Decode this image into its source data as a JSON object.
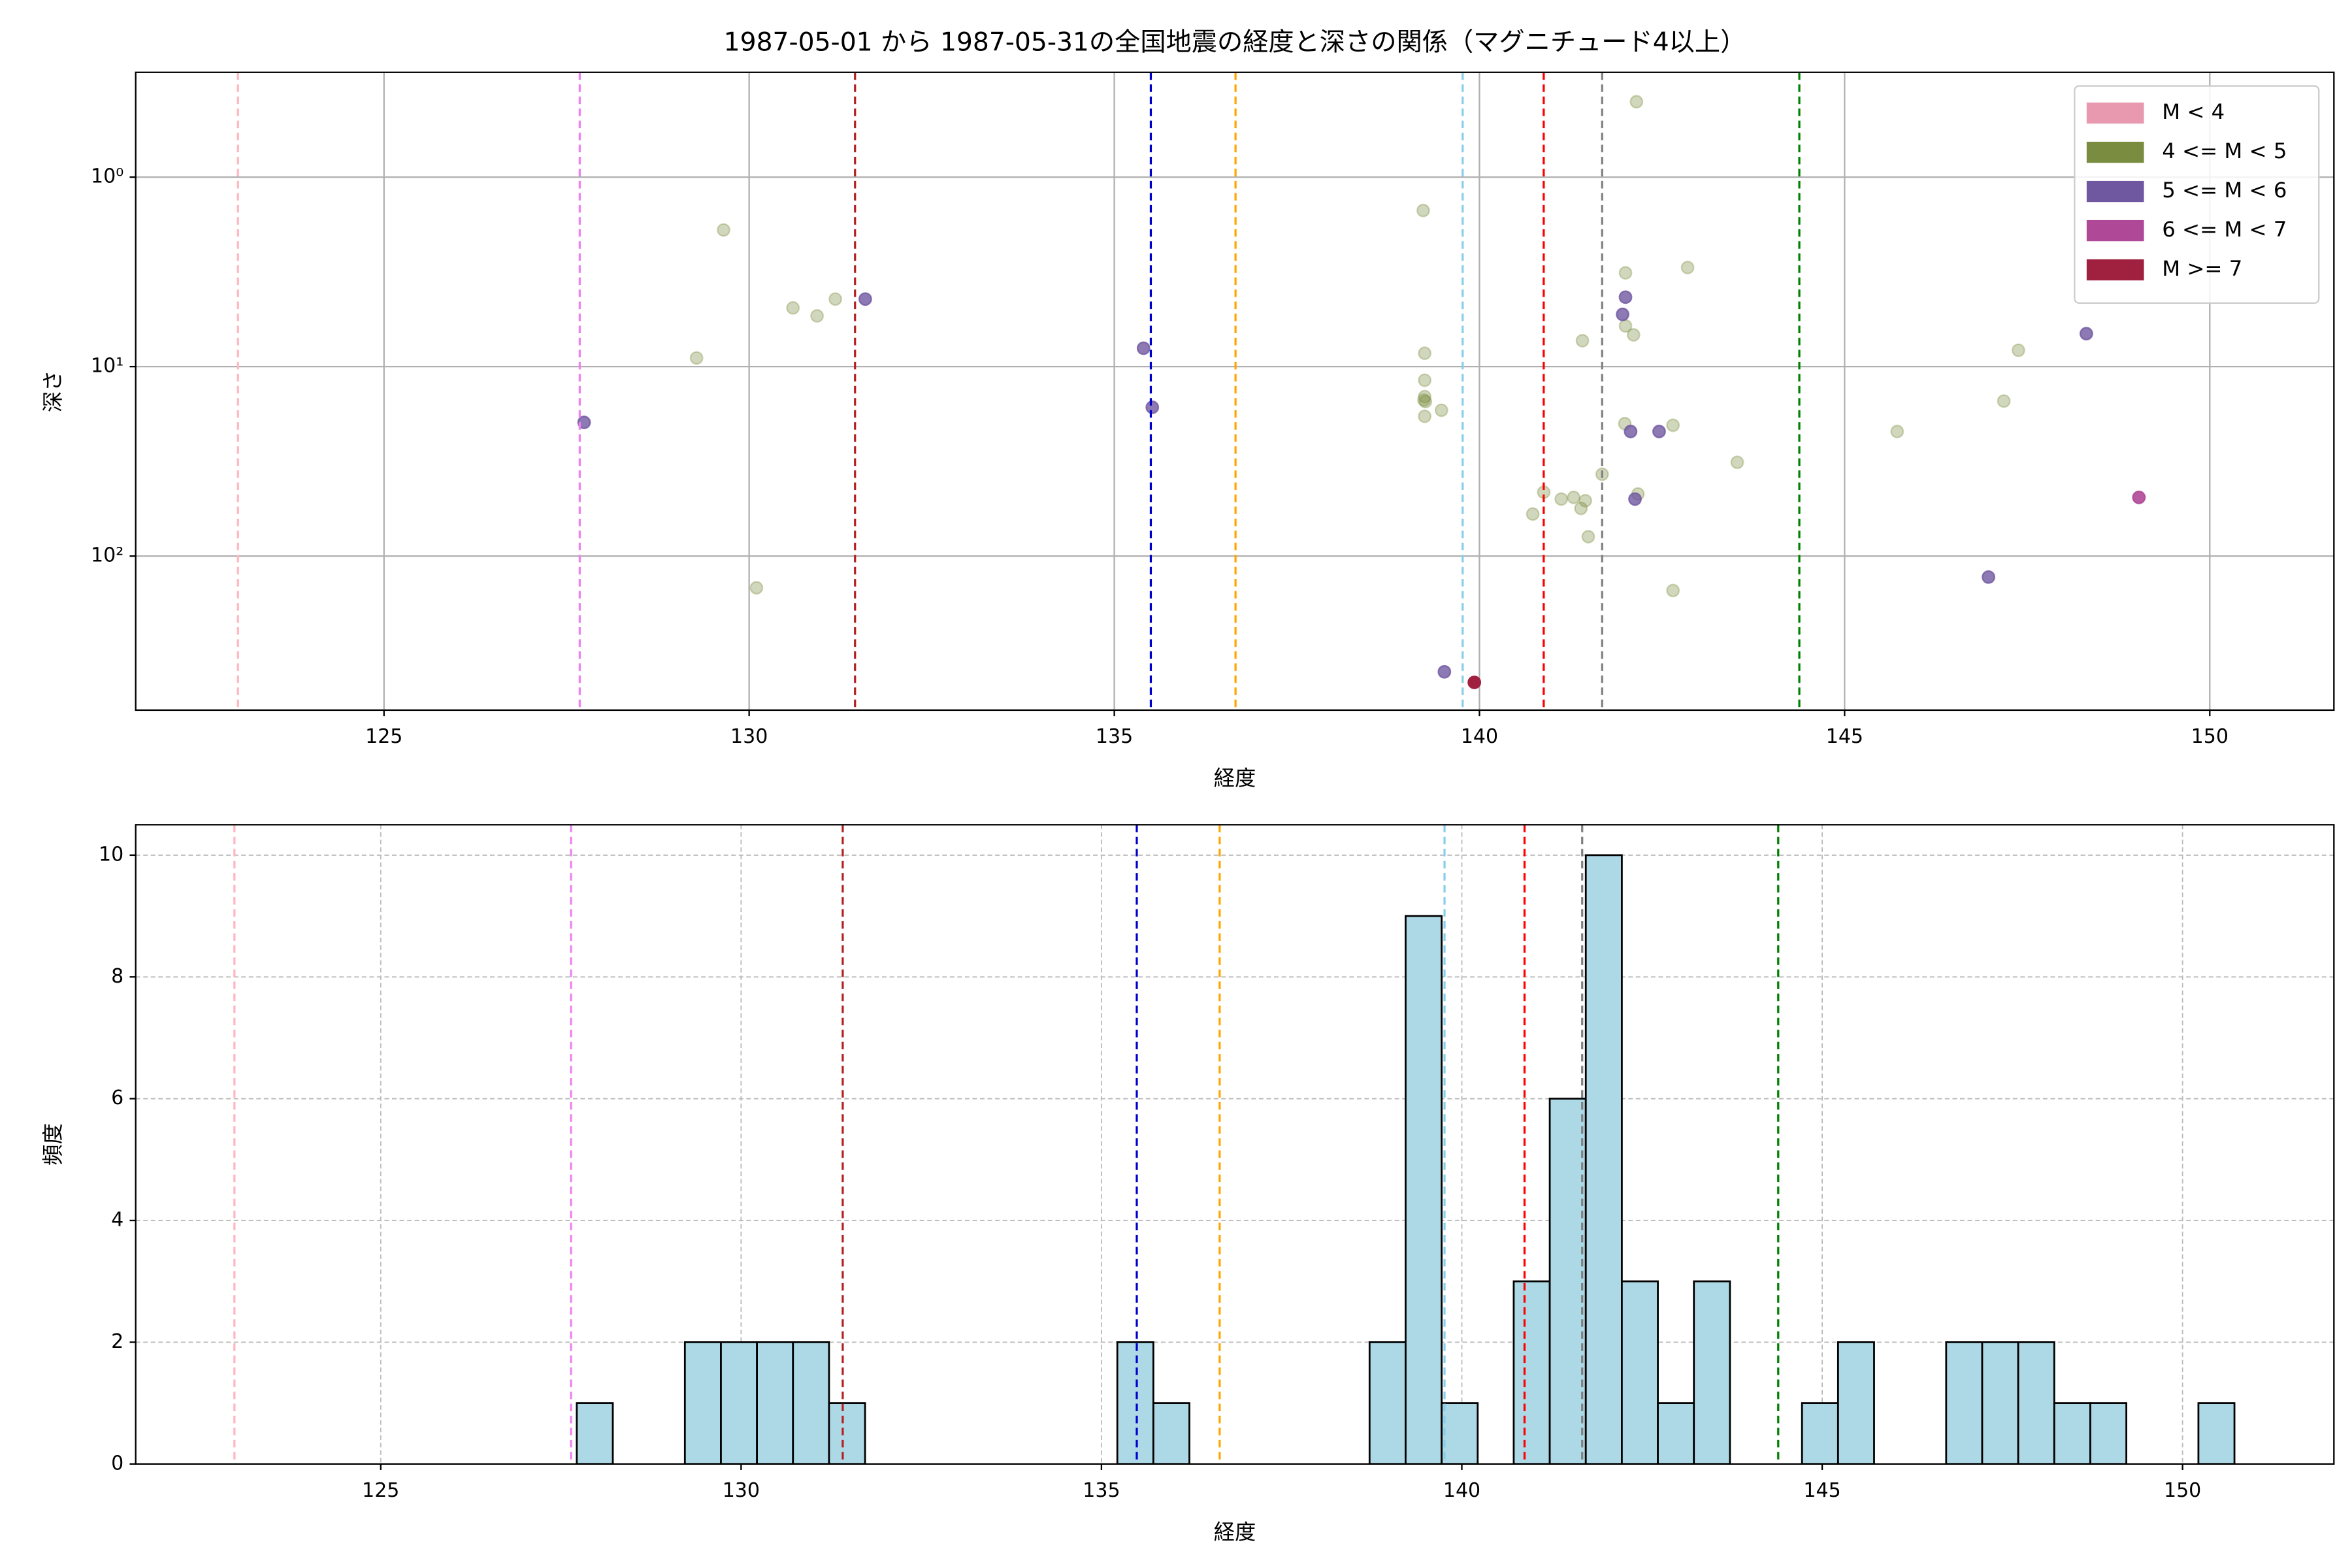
{
  "chart_data": [
    {
      "type": "scatter",
      "title": "1987-05-01 から 1987-05-31の全国地震の経度と深さの関係（マグニチュード4以上）",
      "xlabel": "経度",
      "ylabel": "深さ",
      "xlim": [
        121.6,
        151.7
      ],
      "xticks": [
        125,
        130,
        135,
        140,
        145,
        150
      ],
      "ylim": [
        0.28,
        650
      ],
      "log_y": true,
      "invert_y": true,
      "yticks": [
        {
          "value": 1,
          "label": "10⁰"
        },
        {
          "value": 10,
          "label": "10¹"
        },
        {
          "value": 100,
          "label": "10²"
        }
      ],
      "grid": "solid",
      "legend": "upper right",
      "vlines": [
        {
          "x": 123.0,
          "color": "#ffb6c1"
        },
        {
          "x": 127.68,
          "color": "#ee82ee"
        },
        {
          "x": 131.45,
          "color": "#b22222"
        },
        {
          "x": 135.5,
          "color": "#0000cd"
        },
        {
          "x": 136.66,
          "color": "#ffa500"
        },
        {
          "x": 139.77,
          "color": "#87ceeb"
        },
        {
          "x": 140.88,
          "color": "#ff0000"
        },
        {
          "x": 141.68,
          "color": "#808080"
        },
        {
          "x": 144.38,
          "color": "#008000"
        }
      ],
      "series": [
        {
          "name": "M < 4",
          "color": "#e899b0",
          "alpha": 0.8,
          "x": [],
          "y": []
        },
        {
          "name": "4 <= M < 5",
          "color": "#7a8c40",
          "alpha": 0.35,
          "x": [
            129.65,
            129.28,
            130.1,
            130.6,
            130.93,
            131.18,
            139.23,
            139.25,
            139.25,
            139.25,
            139.24,
            139.26,
            139.25,
            139.48,
            142.15,
            142.0,
            142.0,
            142.11,
            141.41,
            142.85,
            147.38,
            147.18,
            141.99,
            142.65,
            143.53,
            145.72,
            141.68,
            140.88,
            141.12,
            141.29,
            141.45,
            141.39,
            142.17,
            140.73,
            141.49,
            142.65
          ],
          "y": [
            1.9,
            9.0,
            147,
            4.9,
            5.4,
            4.4,
            1.5,
            8.5,
            11.8,
            14.4,
            15,
            15.3,
            18.3,
            17,
            0.4,
            3.2,
            6.1,
            6.8,
            7.3,
            3.0,
            8.2,
            15.2,
            20,
            20.4,
            32,
            22,
            37,
            46,
            50,
            49,
            51,
            56,
            47,
            60,
            79,
            152
          ]
        },
        {
          "name": "5 <= M < 6",
          "color": "#7058a0",
          "alpha": 0.8,
          "x": [
            127.74,
            131.59,
            135.4,
            135.52,
            142.0,
            141.96,
            142.07,
            142.46,
            142.13,
            148.31,
            146.97,
            139.52
          ],
          "y": [
            19.7,
            4.4,
            8.0,
            16.4,
            4.3,
            5.3,
            22,
            22,
            50,
            6.7,
            129,
            408
          ]
        },
        {
          "name": "6 <= M < 7",
          "color": "#b04898",
          "alpha": 0.9,
          "x": [
            149.03
          ],
          "y": [
            49
          ]
        },
        {
          "name": "M >= 7",
          "color": "#a02040",
          "alpha": 1,
          "x": [
            139.93
          ],
          "y": [
            464
          ]
        }
      ]
    },
    {
      "type": "histogram",
      "xlabel": "経度",
      "ylabel": "頻度",
      "xlim": [
        121.6,
        152.1
      ],
      "xticks": [
        125,
        130,
        135,
        140,
        145,
        150
      ],
      "ylim": [
        0,
        10.5
      ],
      "yticks": [
        0,
        2,
        4,
        6,
        8,
        10
      ],
      "grid": "dashed",
      "color": "#add8e6",
      "edgecolor": "#000000",
      "vlines": [
        {
          "x": 122.97,
          "color": "#ffb6c1"
        },
        {
          "x": 127.64,
          "color": "#ee82ee"
        },
        {
          "x": 131.41,
          "color": "#b22222"
        },
        {
          "x": 135.49,
          "color": "#0000cd"
        },
        {
          "x": 136.64,
          "color": "#ffa500"
        },
        {
          "x": 139.76,
          "color": "#87ceeb"
        },
        {
          "x": 140.87,
          "color": "#ff0000"
        },
        {
          "x": 141.67,
          "color": "#808080"
        },
        {
          "x": 144.39,
          "color": "#008000"
        }
      ],
      "bins": [
        127.72,
        128.22,
        128.72,
        129.22,
        129.72,
        130.22,
        130.72,
        131.22,
        131.72,
        132.22,
        132.72,
        133.22,
        133.72,
        134.22,
        134.72,
        135.22,
        135.72,
        136.22,
        136.72,
        137.22,
        137.72,
        138.22,
        138.72,
        139.22,
        139.72,
        140.22,
        140.72,
        141.22,
        141.72,
        142.22,
        142.72,
        143.22,
        143.72,
        144.22,
        144.72,
        145.22,
        145.72,
        146.22,
        146.72,
        147.22,
        147.72,
        148.22,
        148.72,
        149.22,
        149.72,
        150.22,
        150.72
      ],
      "values": [
        1,
        0,
        0,
        2,
        2,
        2,
        2,
        1,
        0,
        0,
        0,
        0,
        0,
        0,
        0,
        2,
        1,
        0,
        0,
        0,
        0,
        0,
        2,
        9,
        1,
        0,
        3,
        6,
        10,
        3,
        1,
        3,
        0,
        0,
        1,
        2,
        0,
        0,
        2,
        2,
        2,
        1,
        1,
        0,
        0,
        1
      ]
    }
  ]
}
